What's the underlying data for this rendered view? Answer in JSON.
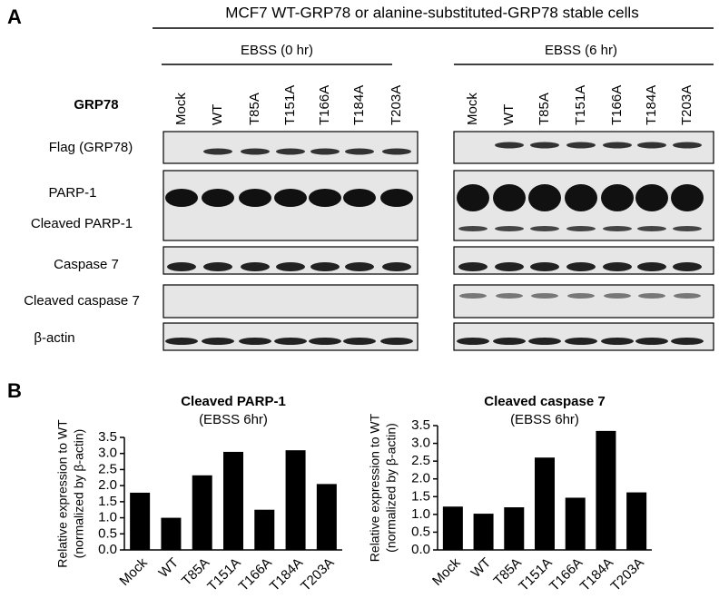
{
  "panel_a": {
    "label": "A",
    "title": "MCF7 WT-GRP78 or alanine-substituted-GRP78 stable cells",
    "groups": [
      "EBSS (0 hr)",
      "EBSS (6 hr)"
    ],
    "row_header": "GRP78",
    "lanes": [
      "Mock",
      "WT",
      "T85A",
      "T151A",
      "T166A",
      "T184A",
      "T203A"
    ],
    "blots": [
      "Flag (GRP78)",
      "PARP-1",
      "Cleaved PARP-1",
      "Caspase 7",
      "Cleaved caspase 7",
      "β-actin"
    ]
  },
  "panel_b": {
    "label": "B"
  },
  "chart_data": [
    {
      "type": "bar",
      "title": "Cleaved PARP-1",
      "subtitle": "(EBSS 6hr)",
      "ylabel": "Relative expression to WT",
      "ylabel_note": "(normalized by β-actin)",
      "categories": [
        "Mock",
        "WT",
        "T85A",
        "T151A",
        "T166A",
        "T184A",
        "T203A"
      ],
      "values": [
        1.78,
        1.0,
        2.32,
        3.05,
        1.25,
        3.1,
        2.05
      ],
      "color": "#000000",
      "ylim": [
        0,
        3.5
      ],
      "yticks": [
        {
          "value": 0,
          "label": "0.0"
        },
        0.5,
        {
          "value": 1,
          "label": "1.0"
        },
        1.5,
        {
          "value": 2,
          "label": "2.0"
        },
        2.5,
        {
          "value": 3,
          "label": "3.0"
        },
        3.5
      ]
    },
    {
      "type": "bar",
      "title": "Cleaved caspase 7",
      "subtitle": "(EBSS 6hr)",
      "ylabel": "Relative expression to WT",
      "ylabel_note": "(normalized by β-actin)",
      "categories": [
        "Mock",
        "WT",
        "T85A",
        "T151A",
        "T166A",
        "T184A",
        "T203A"
      ],
      "values": [
        1.22,
        1.02,
        1.2,
        2.6,
        1.47,
        3.35,
        1.62
      ],
      "color": "#000000",
      "ylim": [
        0,
        3.5
      ],
      "yticks": [
        {
          "value": 0,
          "label": "0.0"
        },
        0.5,
        {
          "value": 1,
          "label": "1.0"
        },
        1.5,
        {
          "value": 2,
          "label": "2.0"
        },
        2.5,
        {
          "value": 3,
          "label": "3.0"
        },
        3.5
      ]
    }
  ]
}
